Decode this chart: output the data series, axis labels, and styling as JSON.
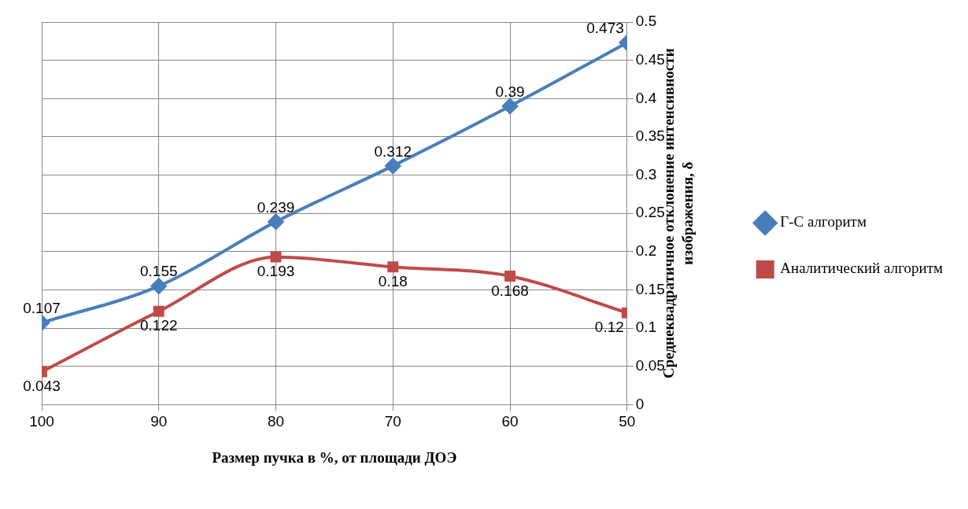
{
  "chart_data": {
    "type": "line",
    "xlabel": "Размер пучка в %, от площади ДОЭ",
    "ylabel": "Среднеквадратичное отклонение интенсивности изображения, δ",
    "x": [
      100,
      90,
      80,
      70,
      60,
      50
    ],
    "series": [
      {
        "name": "Г-С алгоритм",
        "color": "#4a7ebb",
        "marker": "diamond",
        "values": [
          0.107,
          0.155,
          0.239,
          0.312,
          0.39,
          0.473
        ]
      },
      {
        "name": "Аналитический алгоритм",
        "color": "#be4b48",
        "marker": "square",
        "values": [
          0.043,
          0.122,
          0.193,
          0.18,
          0.168,
          0.12
        ]
      }
    ],
    "xlim": [
      100,
      50
    ],
    "xticks": [
      100,
      90,
      80,
      70,
      60,
      50
    ],
    "ylim": [
      0,
      0.5
    ],
    "yticks": [
      0,
      0.05,
      0.1,
      0.15,
      0.2,
      0.25,
      0.3,
      0.35,
      0.4,
      0.45,
      0.5
    ],
    "grid": true,
    "legend": "right",
    "data_labels": true
  }
}
